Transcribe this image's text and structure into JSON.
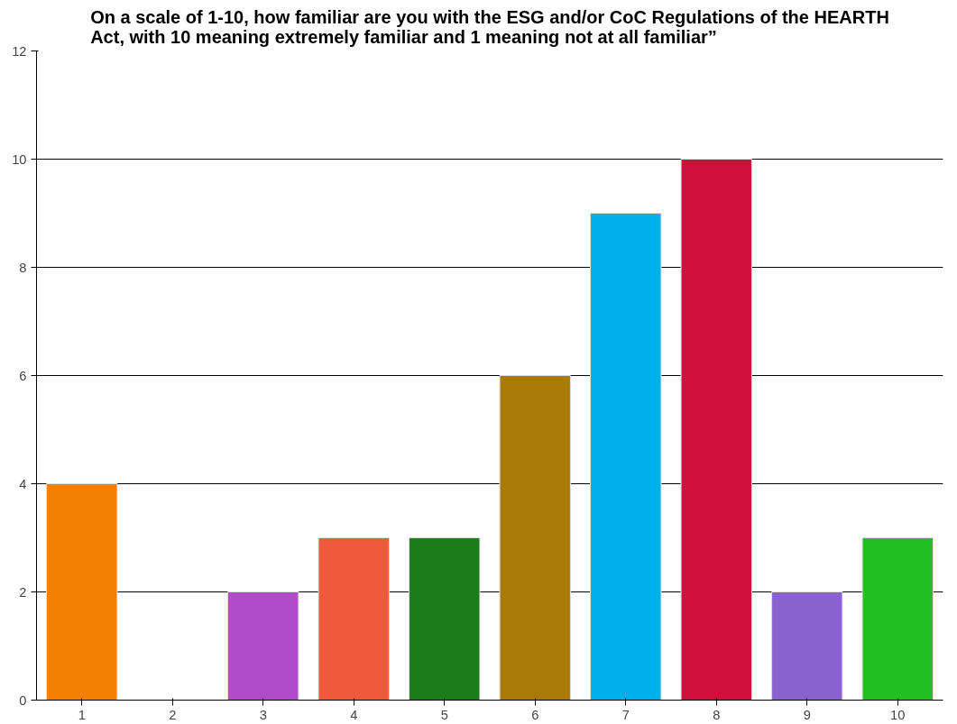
{
  "chart_data": {
    "type": "bar",
    "title": "On a scale of 1-10, how familiar are you with the ESG and/or CoC Regulations of the HEARTH\nAct, with 10 meaning extremely familiar and 1 meaning not at all familiar”",
    "categories": [
      "1",
      "2",
      "3",
      "4",
      "5",
      "6",
      "7",
      "8",
      "9",
      "10"
    ],
    "values": [
      4,
      0,
      2,
      3,
      3,
      6,
      9,
      10,
      2,
      3
    ],
    "colors": [
      "#f57f00",
      null,
      "#b04cc8",
      "#f05a3c",
      "#1a7d1a",
      "#aa7a08",
      "#00aee8",
      "#d0103a",
      "#8a62cf",
      "#22c022"
    ],
    "ylim": [
      0,
      12
    ],
    "yticks": [
      0,
      2,
      4,
      6,
      8,
      10,
      12
    ],
    "grid": "y"
  }
}
